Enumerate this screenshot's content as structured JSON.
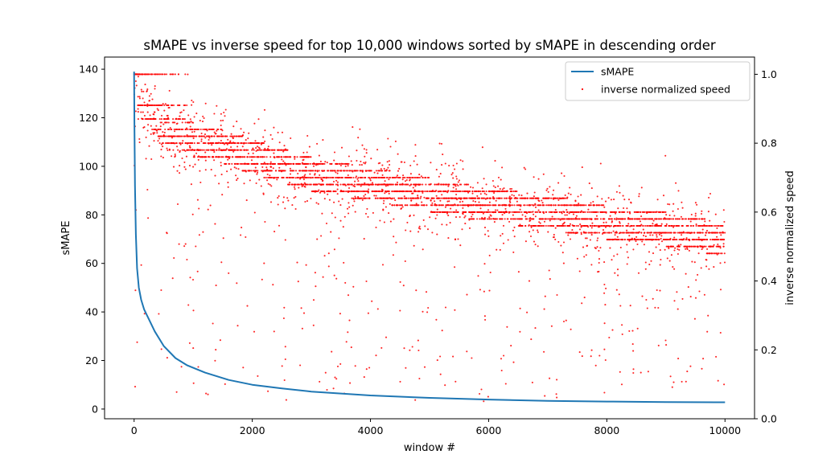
{
  "chart_data": {
    "type": "line",
    "title": "sMAPE vs inverse speed for top 10,000 windows sorted by sMAPE in descending order",
    "xlabel": "window #",
    "ylabel": "sMAPE",
    "y2label": "inverse normalized speed",
    "xlim": [
      -500,
      10500
    ],
    "ylim": [
      -4,
      145
    ],
    "y2lim": [
      0,
      1.05
    ],
    "x_ticks": [
      0,
      2000,
      4000,
      6000,
      8000,
      10000
    ],
    "y_ticks": [
      0,
      20,
      40,
      60,
      80,
      100,
      120,
      140
    ],
    "y2_ticks": [
      0.0,
      0.2,
      0.4,
      0.6,
      0.8,
      1.0
    ],
    "x_tick_labels": [
      "0",
      "2000",
      "4000",
      "6000",
      "8000",
      "10000"
    ],
    "y_tick_labels": [
      "0",
      "20",
      "40",
      "60",
      "80",
      "100",
      "120",
      "140"
    ],
    "y2_tick_labels": [
      "0.0",
      "0.2",
      "0.4",
      "0.6",
      "0.8",
      "1.0"
    ],
    "grid": false,
    "legend_position": "top-right",
    "series": [
      {
        "name": "sMAPE",
        "axis": "left",
        "style": "line",
        "color": "#1f77b4",
        "x": [
          0,
          5,
          15,
          30,
          50,
          80,
          120,
          170,
          250,
          350,
          500,
          700,
          900,
          1200,
          1600,
          2000,
          2500,
          3000,
          4000,
          5000,
          6000,
          7000,
          8000,
          9000,
          10000
        ],
        "values": [
          139,
          118,
          92,
          72,
          58,
          50,
          45,
          41,
          37,
          32,
          26,
          21,
          18,
          15,
          12,
          10,
          8.5,
          7.2,
          5.6,
          4.6,
          3.9,
          3.4,
          3.1,
          2.9,
          2.8
        ]
      },
      {
        "name": "inverse normalized speed",
        "axis": "right",
        "style": "scatter",
        "color": "#ff0000",
        "trend_x": [
          0,
          100,
          300,
          600,
          1000,
          1500,
          2000,
          3000,
          4000,
          5000,
          6000,
          7000,
          8000,
          9000,
          10000
        ],
        "trend_values": [
          1.0,
          0.92,
          0.87,
          0.83,
          0.81,
          0.79,
          0.76,
          0.71,
          0.68,
          0.65,
          0.62,
          0.6,
          0.57,
          0.55,
          0.52
        ],
        "levels": [
          1.0,
          0.91,
          0.87,
          0.84,
          0.82,
          0.8,
          0.78,
          0.76,
          0.74,
          0.72,
          0.7,
          0.68,
          0.66,
          0.64,
          0.62,
          0.6,
          0.58,
          0.56,
          0.54,
          0.52
        ]
      }
    ]
  }
}
